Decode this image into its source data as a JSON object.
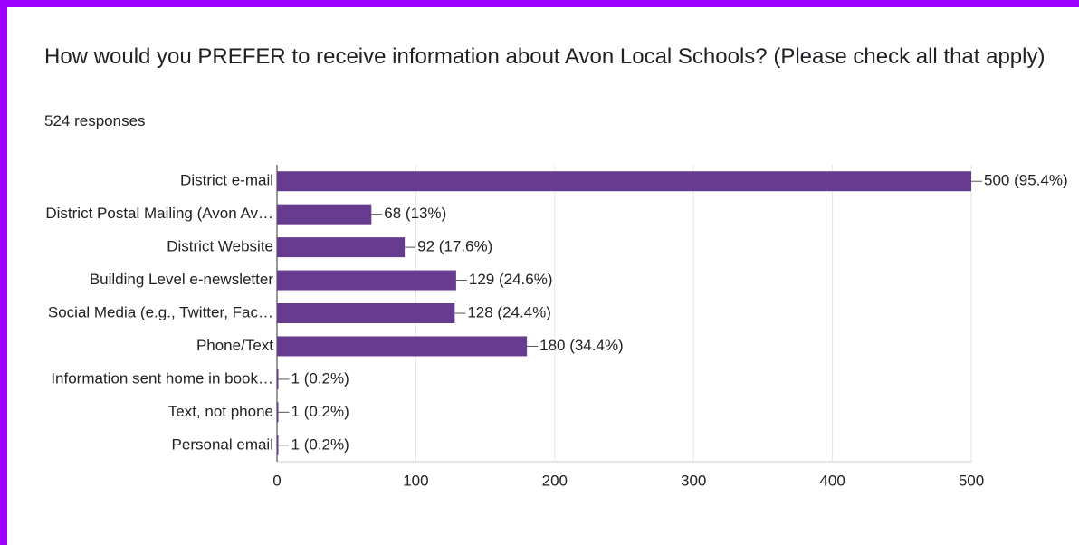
{
  "chart_data": {
    "type": "hbar",
    "title": "How would you PREFER to receive information about Avon Local Schools? (Please check all that apply)",
    "subtitle": "524 responses",
    "categories": [
      "District e-mail",
      "District Postal Mailing (Avon Av…",
      "District Website",
      "Building Level e-newsletter",
      "Social Media (e.g., Twitter, Fac…",
      "Phone/Text",
      "Information sent home in book…",
      "Text, not phone",
      "Personal email"
    ],
    "values": [
      500,
      68,
      92,
      129,
      128,
      180,
      1,
      1,
      1
    ],
    "value_labels": [
      "500 (95.4%)",
      "68 (13%)",
      "92 (17.6%)",
      "129 (24.6%)",
      "128 (24.4%)",
      "180 (34.4%)",
      "1 (0.2%)",
      "1 (0.2%)",
      "1 (0.2%)"
    ],
    "color": "#673b8f",
    "xlim": [
      0,
      500
    ],
    "xticks": [
      0,
      100,
      200,
      300,
      400,
      500
    ],
    "grid": true
  }
}
